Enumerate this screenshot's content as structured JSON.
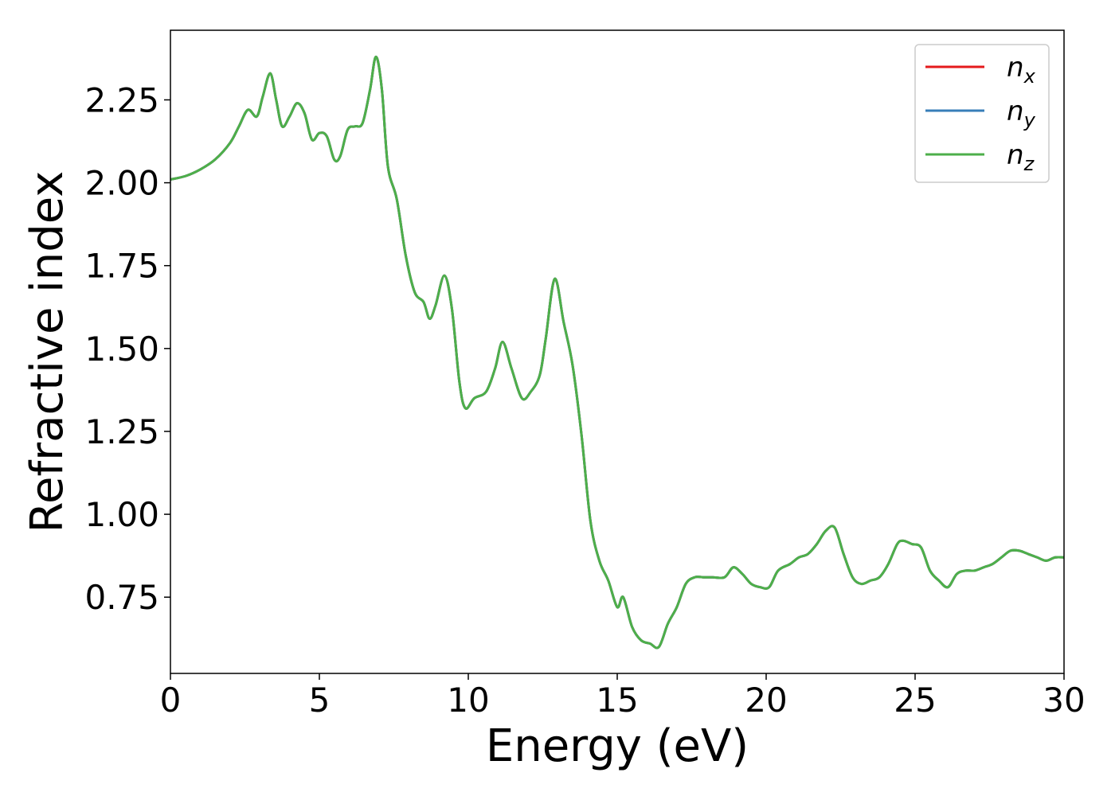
{
  "chart_data": {
    "type": "line",
    "xlabel": "Energy (eV)",
    "ylabel": "Refractive index",
    "xlim": [
      0,
      30
    ],
    "ylim": [
      0.52,
      2.46
    ],
    "xticks": [
      0,
      5,
      10,
      15,
      20,
      25,
      30
    ],
    "xtick_labels": [
      "0",
      "5",
      "10",
      "15",
      "20",
      "25",
      "30"
    ],
    "yticks": [
      0.75,
      1.0,
      1.25,
      1.5,
      1.75,
      2.0,
      2.25
    ],
    "ytick_labels": [
      "0.75",
      "1.00",
      "1.25",
      "1.50",
      "1.75",
      "2.00",
      "2.25"
    ],
    "grid": false,
    "legend_position": "top-right",
    "x": [
      0,
      0.5,
      1.0,
      1.5,
      2.0,
      2.3,
      2.6,
      2.9,
      3.1,
      3.35,
      3.55,
      3.75,
      4.0,
      4.25,
      4.5,
      4.75,
      5.0,
      5.25,
      5.5,
      5.7,
      5.95,
      6.2,
      6.45,
      6.7,
      6.9,
      7.1,
      7.3,
      7.6,
      7.9,
      8.2,
      8.5,
      8.7,
      8.9,
      9.2,
      9.45,
      9.7,
      9.9,
      10.2,
      10.6,
      10.9,
      11.15,
      11.45,
      11.8,
      12.1,
      12.4,
      12.6,
      12.9,
      13.2,
      13.5,
      13.8,
      14.1,
      14.4,
      14.7,
      15.0,
      15.2,
      15.5,
      15.8,
      16.1,
      16.4,
      16.7,
      17.0,
      17.3,
      17.6,
      17.9,
      18.2,
      18.6,
      18.9,
      19.2,
      19.5,
      19.8,
      20.1,
      20.4,
      20.8,
      21.1,
      21.4,
      21.7,
      22.0,
      22.3,
      22.6,
      22.9,
      23.2,
      23.5,
      23.8,
      24.1,
      24.4,
      24.6,
      24.9,
      25.2,
      25.5,
      25.8,
      26.1,
      26.4,
      26.7,
      27.0,
      27.3,
      27.6,
      27.9,
      28.2,
      28.5,
      28.8,
      29.1,
      29.4,
      29.7,
      30.0
    ],
    "series": [
      {
        "name": "n_x",
        "label_base": "n",
        "label_sub": "x",
        "color": "#e41a1c",
        "values": [
          2.01,
          2.02,
          2.04,
          2.07,
          2.12,
          2.17,
          2.22,
          2.2,
          2.26,
          2.33,
          2.25,
          2.17,
          2.2,
          2.24,
          2.21,
          2.13,
          2.15,
          2.14,
          2.07,
          2.08,
          2.16,
          2.17,
          2.18,
          2.28,
          2.38,
          2.28,
          2.05,
          1.95,
          1.78,
          1.67,
          1.64,
          1.59,
          1.63,
          1.72,
          1.62,
          1.4,
          1.32,
          1.35,
          1.37,
          1.44,
          1.52,
          1.44,
          1.35,
          1.37,
          1.42,
          1.53,
          1.71,
          1.58,
          1.45,
          1.24,
          0.98,
          0.86,
          0.8,
          0.72,
          0.75,
          0.66,
          0.62,
          0.61,
          0.6,
          0.67,
          0.72,
          0.79,
          0.81,
          0.81,
          0.81,
          0.81,
          0.84,
          0.82,
          0.79,
          0.78,
          0.78,
          0.83,
          0.85,
          0.87,
          0.88,
          0.91,
          0.95,
          0.96,
          0.88,
          0.81,
          0.79,
          0.8,
          0.81,
          0.85,
          0.91,
          0.92,
          0.91,
          0.9,
          0.83,
          0.8,
          0.78,
          0.82,
          0.83,
          0.83,
          0.84,
          0.85,
          0.87,
          0.89,
          0.89,
          0.88,
          0.87,
          0.86,
          0.87,
          0.87
        ]
      },
      {
        "name": "n_y",
        "label_base": "n",
        "label_sub": "y",
        "color": "#377eb8",
        "values": [
          2.01,
          2.02,
          2.04,
          2.07,
          2.12,
          2.17,
          2.22,
          2.2,
          2.26,
          2.33,
          2.25,
          2.17,
          2.2,
          2.24,
          2.21,
          2.13,
          2.15,
          2.14,
          2.07,
          2.08,
          2.16,
          2.17,
          2.18,
          2.28,
          2.38,
          2.28,
          2.05,
          1.95,
          1.78,
          1.67,
          1.64,
          1.59,
          1.63,
          1.72,
          1.62,
          1.4,
          1.32,
          1.35,
          1.37,
          1.44,
          1.52,
          1.44,
          1.35,
          1.37,
          1.42,
          1.53,
          1.71,
          1.58,
          1.45,
          1.24,
          0.98,
          0.86,
          0.8,
          0.72,
          0.75,
          0.66,
          0.62,
          0.61,
          0.6,
          0.67,
          0.72,
          0.79,
          0.81,
          0.81,
          0.81,
          0.81,
          0.84,
          0.82,
          0.79,
          0.78,
          0.78,
          0.83,
          0.85,
          0.87,
          0.88,
          0.91,
          0.95,
          0.96,
          0.88,
          0.81,
          0.79,
          0.8,
          0.81,
          0.85,
          0.91,
          0.92,
          0.91,
          0.9,
          0.83,
          0.8,
          0.78,
          0.82,
          0.83,
          0.83,
          0.84,
          0.85,
          0.87,
          0.89,
          0.89,
          0.88,
          0.87,
          0.86,
          0.87,
          0.87
        ]
      },
      {
        "name": "n_z",
        "label_base": "n",
        "label_sub": "z",
        "color": "#4daf4a",
        "values": [
          2.01,
          2.02,
          2.04,
          2.07,
          2.12,
          2.17,
          2.22,
          2.2,
          2.26,
          2.33,
          2.25,
          2.17,
          2.2,
          2.24,
          2.21,
          2.13,
          2.15,
          2.14,
          2.07,
          2.08,
          2.16,
          2.17,
          2.18,
          2.28,
          2.38,
          2.28,
          2.05,
          1.95,
          1.78,
          1.67,
          1.64,
          1.59,
          1.63,
          1.72,
          1.62,
          1.4,
          1.32,
          1.35,
          1.37,
          1.44,
          1.52,
          1.44,
          1.35,
          1.37,
          1.42,
          1.53,
          1.71,
          1.58,
          1.45,
          1.24,
          0.98,
          0.86,
          0.8,
          0.72,
          0.75,
          0.66,
          0.62,
          0.61,
          0.6,
          0.67,
          0.72,
          0.79,
          0.81,
          0.81,
          0.81,
          0.81,
          0.84,
          0.82,
          0.79,
          0.78,
          0.78,
          0.83,
          0.85,
          0.87,
          0.88,
          0.91,
          0.95,
          0.96,
          0.88,
          0.81,
          0.79,
          0.8,
          0.81,
          0.85,
          0.91,
          0.92,
          0.91,
          0.9,
          0.83,
          0.8,
          0.78,
          0.82,
          0.83,
          0.83,
          0.84,
          0.85,
          0.87,
          0.89,
          0.89,
          0.88,
          0.87,
          0.86,
          0.87,
          0.87
        ]
      }
    ]
  }
}
